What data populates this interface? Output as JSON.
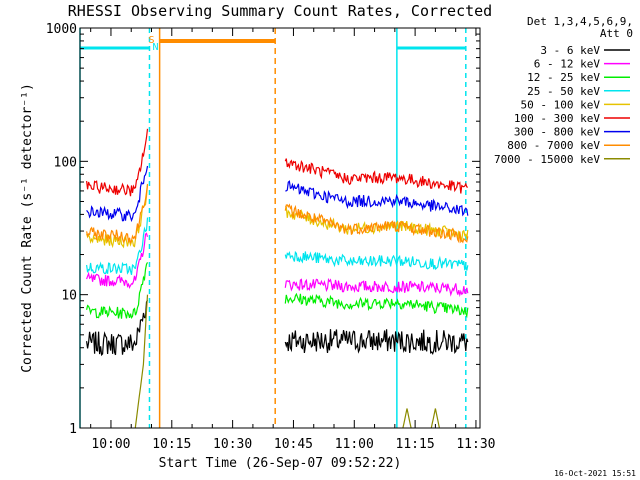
{
  "chart_data": {
    "type": "line",
    "title": "RHESSI Observing Summary Count Rates, Corrected",
    "ylabel": "Corrected Count Rate (s⁻¹ detector⁻¹)",
    "xlabel": "Start Time (26-Sep-07 09:52:22)",
    "y_scale": "log",
    "ylim": [
      1,
      1000
    ],
    "y_ticks": [
      {
        "value": 1,
        "label": "1"
      },
      {
        "value": 10,
        "label": "10"
      },
      {
        "value": 100,
        "label": "100"
      },
      {
        "value": 1000,
        "label": "1000"
      }
    ],
    "xlim": [
      "09:52:22",
      "11:31:00"
    ],
    "x_ticks": [
      "10:00",
      "10:15",
      "10:30",
      "10:45",
      "11:00",
      "11:15",
      "11:30"
    ],
    "legend_title": [
      "Det 1,3,4,5,6,9,",
      "Att 0"
    ],
    "legend_placement": "right",
    "footer": "16-Oct-2021 15:51",
    "flags": [
      {
        "label": "S",
        "color": "#ff8c00",
        "time": "10:10"
      },
      {
        "label": "N",
        "color": "#00e5ee",
        "time": "10:11"
      }
    ],
    "night_intervals": [
      {
        "color": "#00e5ee",
        "start": "09:52:22",
        "end": "10:09:30"
      },
      {
        "color": "#00e5ee",
        "start": "11:10:30",
        "end": "11:27:30"
      }
    ],
    "saa_interval": {
      "color": "#ff8c00",
      "start": "10:12:00",
      "end": "10:40:30"
    },
    "series": [
      {
        "name": "3 - 6 keV",
        "color": "#000000",
        "segments": [
          {
            "x": [
              "09:54",
              "10:06",
              "10:09"
            ],
            "y": [
              4.3,
              4.3,
              9
            ]
          },
          {
            "x": [
              "10:43",
              "11:10",
              "11:28"
            ],
            "y": [
              4.5,
              4.5,
              4.4
            ]
          }
        ]
      },
      {
        "name": "6 - 12 keV",
        "color": "#ff00ff",
        "segments": [
          {
            "x": [
              "09:54",
              "10:06",
              "10:09"
            ],
            "y": [
              13,
              12.5,
              30
            ]
          },
          {
            "x": [
              "10:43",
              "11:00",
              "11:10",
              "11:28"
            ],
            "y": [
              12,
              11.5,
              11.5,
              11
            ]
          }
        ]
      },
      {
        "name": "12 - 25 keV",
        "color": "#00ee00",
        "segments": [
          {
            "x": [
              "09:54",
              "10:06",
              "10:09"
            ],
            "y": [
              7.5,
              7.2,
              18
            ]
          },
          {
            "x": [
              "10:43",
              "11:00",
              "11:10",
              "11:28"
            ],
            "y": [
              9.5,
              8.5,
              8.8,
              7.5
            ]
          }
        ]
      },
      {
        "name": "25 - 50 keV",
        "color": "#00e5ee",
        "segments": [
          {
            "x": [
              "09:54",
              "10:06",
              "10:09"
            ],
            "y": [
              16,
              15.5,
              35
            ]
          },
          {
            "x": [
              "10:43",
              "11:00",
              "11:10",
              "11:28"
            ],
            "y": [
              20,
              17.5,
              18,
              16.5
            ]
          }
        ]
      },
      {
        "name": "50 - 100 keV",
        "color": "#e6c300",
        "segments": [
          {
            "x": [
              "09:54",
              "10:06",
              "10:09"
            ],
            "y": [
              26,
              25,
              60
            ]
          },
          {
            "x": [
              "10:43",
              "10:58",
              "11:10",
              "11:28"
            ],
            "y": [
              42,
              31,
              33,
              28
            ]
          }
        ]
      },
      {
        "name": "100 - 300 keV",
        "color": "#ee0000",
        "segments": [
          {
            "x": [
              "09:54",
              "10:06",
              "10:09"
            ],
            "y": [
              65,
              60,
              160
            ]
          },
          {
            "x": [
              "10:43",
              "10:58",
              "11:10",
              "11:28"
            ],
            "y": [
              100,
              74,
              76,
              62
            ]
          }
        ]
      },
      {
        "name": "300 - 800 keV",
        "color": "#0000ee",
        "segments": [
          {
            "x": [
              "09:54",
              "10:06",
              "10:09"
            ],
            "y": [
              42,
              39,
              100
            ]
          },
          {
            "x": [
              "10:43",
              "10:58",
              "11:10",
              "11:28"
            ],
            "y": [
              65,
              50,
              51,
              42
            ]
          }
        ]
      },
      {
        "name": "800 - 7000 keV",
        "color": "#ff8c00",
        "segments": [
          {
            "x": [
              "09:54",
              "10:06",
              "10:09"
            ],
            "y": [
              29,
              27,
              65
            ]
          },
          {
            "x": [
              "10:43",
              "10:58",
              "11:10",
              "11:28"
            ],
            "y": [
              44,
              31,
              33,
              27
            ]
          }
        ]
      },
      {
        "name": "7000 - 15000 keV",
        "color": "#8b8b00",
        "segments": [
          {
            "x": [
              "10:06",
              "10:08",
              "10:09"
            ],
            "y": [
              1,
              3,
              10
            ]
          },
          {
            "x": [
              "11:12",
              "11:13",
              "11:14"
            ],
            "y": [
              1,
              1.4,
              1
            ]
          },
          {
            "x": [
              "11:19",
              "11:20",
              "11:21"
            ],
            "y": [
              1,
              1.4,
              1
            ]
          }
        ]
      }
    ]
  }
}
